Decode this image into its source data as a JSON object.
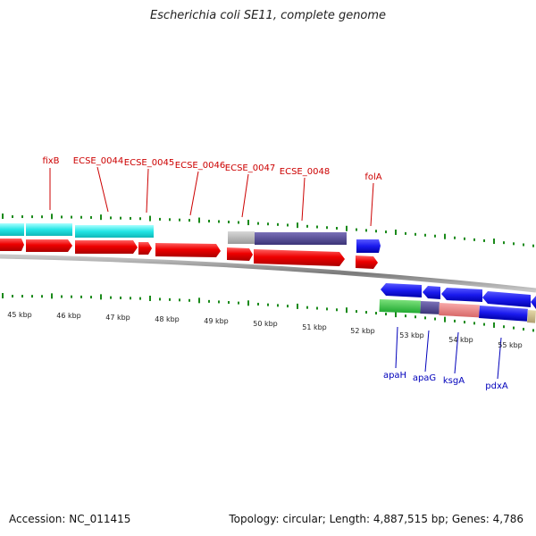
{
  "title": "Escherichia coli SE11, complete genome",
  "footer": {
    "accession": "Accession: NC_011415",
    "topology": "Topology: circular; Length: 4,887,515 bp; Genes: 4,786"
  },
  "colors": {
    "label_top": "#cc0000",
    "label_bottom": "#0000bb",
    "tick": "#1a8a1a",
    "backbone": "#9a9a9a"
  },
  "kbp_labels": [
    "45 kbp",
    "46 kbp",
    "47 kbp",
    "48 kbp",
    "49 kbp",
    "50 kbp",
    "51 kbp",
    "52 kbp",
    "53 kbp",
    "54 kbp",
    "55 kbp"
  ],
  "top_gene_labels": [
    "fixB",
    "ECSE_0044",
    "ECSE_0045",
    "ECSE_0046",
    "ECSE_0047",
    "ECSE_0048",
    "folA"
  ],
  "bottom_gene_labels": [
    "apaH",
    "apaG",
    "ksgA",
    "pdxA"
  ]
}
